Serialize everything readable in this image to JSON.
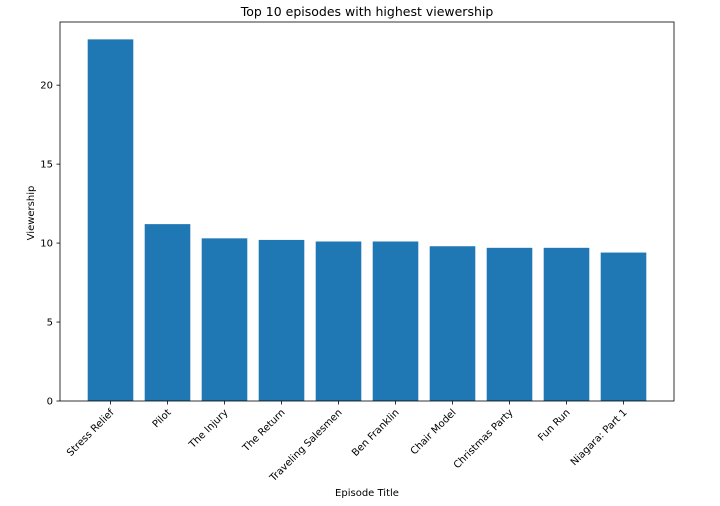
{
  "chart_data": {
    "type": "bar",
    "title": "Top 10 episodes with highest viewership",
    "xlabel": "Episode Title",
    "ylabel": "Viewership",
    "categories": [
      "Stress Relief",
      "Pilot",
      "The Injury",
      "The Return",
      "Traveling Salesmen",
      "Ben Franklin",
      "Chair Model",
      "Christmas Party",
      "Fun Run",
      "Niagara: Part 1"
    ],
    "values": [
      22.9,
      11.2,
      10.3,
      10.2,
      10.1,
      10.1,
      9.8,
      9.7,
      9.7,
      9.4
    ],
    "ylim": [
      0,
      24
    ],
    "yticks": [
      0,
      5,
      10,
      15,
      20
    ],
    "grid": false,
    "colors": {
      "bar": "#1f77b4",
      "axis": "#000000"
    }
  }
}
